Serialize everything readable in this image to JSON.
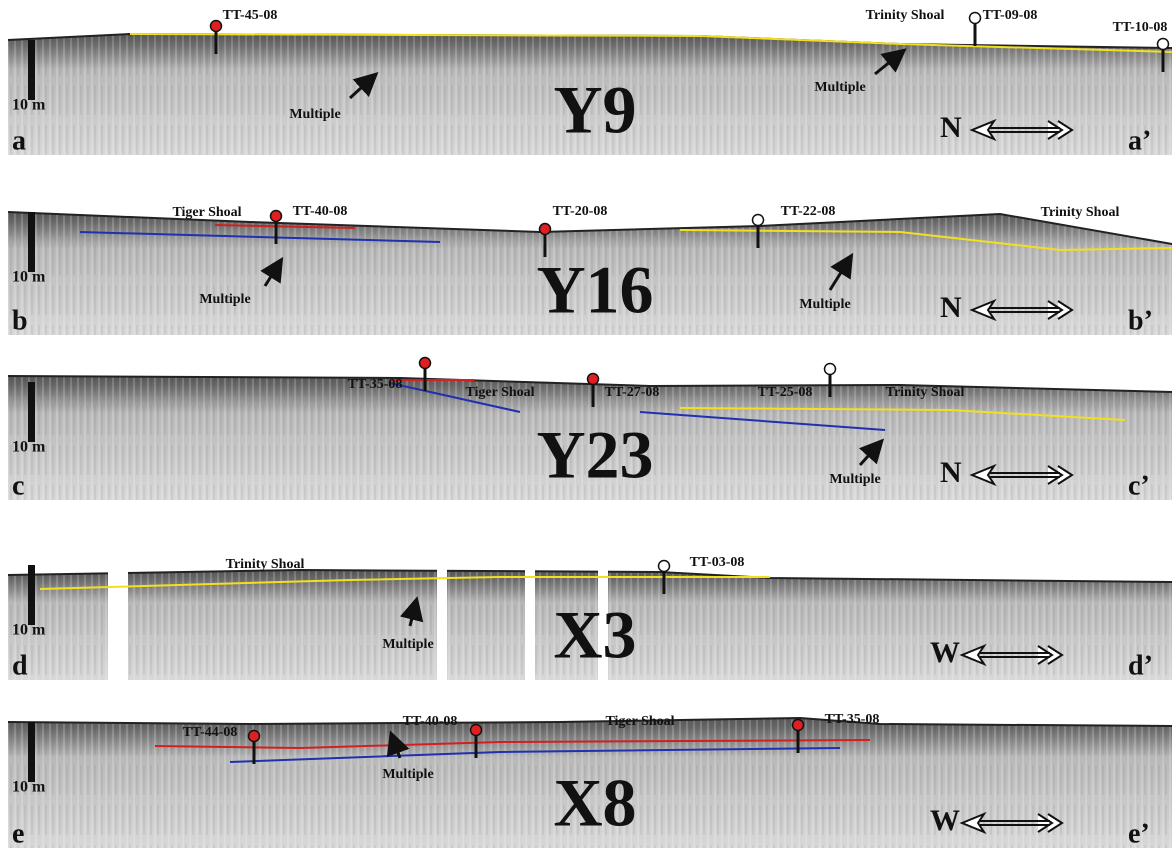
{
  "panels": [
    {
      "name": "Y9",
      "start": "a",
      "end": "a’",
      "scale": "10 m",
      "direction": "N",
      "cores": [
        {
          "label": "TT-45-08",
          "marker": "red"
        },
        {
          "label": "TT-09-08",
          "marker": "white"
        },
        {
          "label": "TT-10-08",
          "marker": "white"
        }
      ],
      "notes": [
        "Trinity Shoal",
        "Multiple",
        "Multiple"
      ]
    },
    {
      "name": "Y16",
      "start": "b",
      "end": "b’",
      "scale": "10 m",
      "direction": "N",
      "cores": [
        {
          "label": "TT-40-08",
          "marker": "red"
        },
        {
          "label": "TT-20-08",
          "marker": "red"
        },
        {
          "label": "TT-22-08",
          "marker": "white"
        }
      ],
      "notes": [
        "Tiger Shoal",
        "Trinity Shoal",
        "Multiple",
        "Multiple"
      ]
    },
    {
      "name": "Y23",
      "start": "c",
      "end": "c’",
      "scale": "10 m",
      "direction": "N",
      "cores": [
        {
          "label": "TT-35-08",
          "marker": "red"
        },
        {
          "label": "TT-27-08",
          "marker": "red"
        },
        {
          "label": "TT-25-08",
          "marker": "white"
        }
      ],
      "notes": [
        "Tiger Shoal",
        "Trinity Shoal",
        "Multiple"
      ]
    },
    {
      "name": "X3",
      "start": "d",
      "end": "d’",
      "scale": "10 m",
      "direction": "W",
      "cores": [
        {
          "label": "TT-03-08",
          "marker": "white"
        }
      ],
      "notes": [
        "Trinity Shoal",
        "Multiple"
      ]
    },
    {
      "name": "X8",
      "start": "e",
      "end": "e’",
      "scale": "10 m",
      "direction": "W",
      "cores": [
        {
          "label": "TT-44-08",
          "marker": "red"
        },
        {
          "label": "TT-40-08",
          "marker": "red"
        },
        {
          "label": "TT-35-08",
          "marker": "red"
        }
      ],
      "notes": [
        "Tiger Shoal",
        "Multiple"
      ]
    }
  ]
}
